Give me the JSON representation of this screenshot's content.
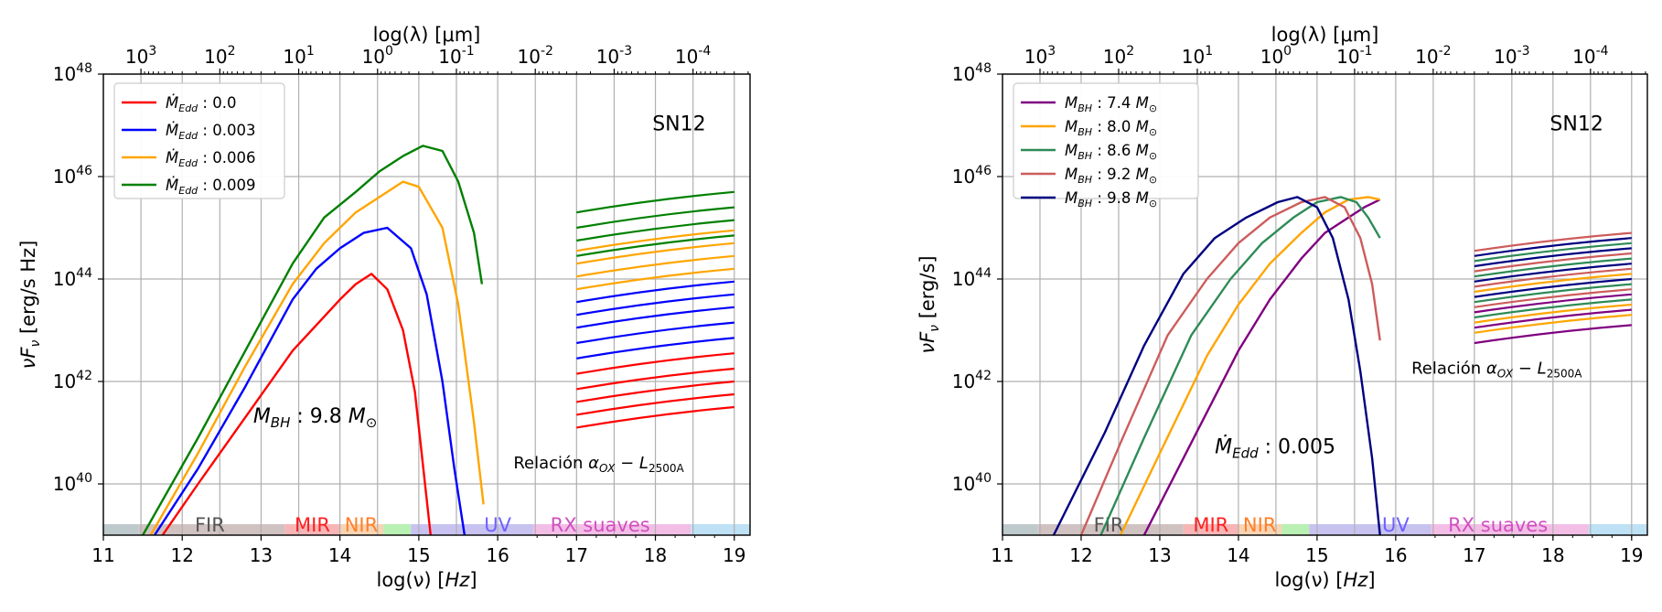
{
  "chart_data": [
    {
      "type": "line",
      "panel": "left",
      "annotation_id": "SN12",
      "xlabel": "log(ν) [Hz]",
      "ylabel": "νFν [erg/s Hz]",
      "top_xlabel": "log(λ) [μm]",
      "xlim": [
        11,
        19.2
      ],
      "ylim_log10": [
        39,
        48
      ],
      "x_ticks": [
        11,
        12,
        13,
        14,
        15,
        16,
        17,
        18,
        19
      ],
      "y_ticks_log10": [
        40,
        42,
        44,
        46,
        48
      ],
      "top_ticks_exp": [
        3,
        2,
        1,
        0,
        -1,
        -2,
        -3,
        -4
      ],
      "legend_title": "",
      "legend_prefix": "Ṁ_Edd",
      "series": [
        {
          "name": "Ṁ_Edd : 0.0",
          "label_value": "0.0",
          "color": "#ff0000",
          "x": [
            11.75,
            12.2,
            12.8,
            13.4,
            13.7,
            14.0,
            14.2,
            14.4,
            14.6,
            14.8,
            14.95,
            15.05,
            15.15
          ],
          "y": [
            39.0,
            40.0,
            41.3,
            42.6,
            43.1,
            43.6,
            43.9,
            44.1,
            43.8,
            43.0,
            41.8,
            40.4,
            39.0
          ]
        },
        {
          "name": "Ṁ_Edd : 0.003",
          "label_value": "0.003",
          "color": "#0000ff",
          "x": [
            11.65,
            12.2,
            12.8,
            13.4,
            13.7,
            14.0,
            14.3,
            14.6,
            14.9,
            15.1,
            15.3,
            15.45,
            15.58
          ],
          "y": [
            39.0,
            40.3,
            41.9,
            43.6,
            44.2,
            44.6,
            44.9,
            45.0,
            44.6,
            43.7,
            42.0,
            40.3,
            39.0
          ]
        },
        {
          "name": "Ṁ_Edd : 0.006",
          "label_value": "0.006",
          "color": "#ffa500",
          "x": [
            11.6,
            12.2,
            12.8,
            13.4,
            13.8,
            14.2,
            14.5,
            14.8,
            15.0,
            15.3,
            15.5,
            15.7,
            15.82
          ],
          "y": [
            39.0,
            40.6,
            42.3,
            43.9,
            44.7,
            45.3,
            45.6,
            45.9,
            45.8,
            45.0,
            43.5,
            41.2,
            39.6
          ]
        },
        {
          "name": "Ṁ_Edd : 0.009",
          "label_value": "0.009",
          "color": "#008000",
          "x": [
            11.5,
            12.2,
            12.8,
            13.4,
            13.8,
            14.2,
            14.5,
            14.8,
            15.05,
            15.3,
            15.5,
            15.7,
            15.8
          ],
          "y": [
            39.0,
            40.9,
            42.6,
            44.3,
            45.2,
            45.7,
            46.1,
            46.4,
            46.6,
            46.5,
            45.9,
            44.9,
            43.9
          ]
        }
      ],
      "xray_lines": [
        {
          "color": "#008000",
          "y_start": 45.3,
          "y_end": 45.7
        },
        {
          "color": "#008000",
          "y_start": 45.0,
          "y_end": 45.4
        },
        {
          "color": "#008000",
          "y_start": 44.75,
          "y_end": 45.15
        },
        {
          "color": "#ffa500",
          "y_start": 44.55,
          "y_end": 44.95
        },
        {
          "color": "#008000",
          "y_start": 44.45,
          "y_end": 44.85
        },
        {
          "color": "#ffa500",
          "y_start": 44.3,
          "y_end": 44.7
        },
        {
          "color": "#ffa500",
          "y_start": 44.05,
          "y_end": 44.45
        },
        {
          "color": "#ffa500",
          "y_start": 43.8,
          "y_end": 44.2
        },
        {
          "color": "#0000ff",
          "y_start": 43.55,
          "y_end": 43.95
        },
        {
          "color": "#0000ff",
          "y_start": 43.3,
          "y_end": 43.7
        },
        {
          "color": "#0000ff",
          "y_start": 43.05,
          "y_end": 43.45
        },
        {
          "color": "#0000ff",
          "y_start": 42.75,
          "y_end": 43.15
        },
        {
          "color": "#0000ff",
          "y_start": 42.45,
          "y_end": 42.85
        },
        {
          "color": "#ff0000",
          "y_start": 42.15,
          "y_end": 42.55
        },
        {
          "color": "#ff0000",
          "y_start": 41.85,
          "y_end": 42.25
        },
        {
          "color": "#ff0000",
          "y_start": 41.6,
          "y_end": 42.0
        },
        {
          "color": "#ff0000",
          "y_start": 41.35,
          "y_end": 41.75
        },
        {
          "color": "#ff0000",
          "y_start": 41.1,
          "y_end": 41.5
        }
      ],
      "xray_x": [
        17.0,
        19.0
      ],
      "annotations": {
        "sample": "SN12",
        "fixed_param": "M_BH : 9.8 M⊙",
        "relation": "Relación α_OX − L_2500A"
      }
    },
    {
      "type": "line",
      "panel": "right",
      "xlabel": "log(ν) [Hz]",
      "ylabel": "νFν [erg/s]",
      "top_xlabel": "log(λ) [μm]",
      "xlim": [
        11,
        19.2
      ],
      "ylim_log10": [
        39,
        48
      ],
      "x_ticks": [
        11,
        12,
        13,
        14,
        15,
        16,
        17,
        18,
        19
      ],
      "y_ticks_log10": [
        40,
        42,
        44,
        46,
        48
      ],
      "top_ticks_exp": [
        3,
        2,
        1,
        0,
        -1,
        -2,
        -3,
        -4
      ],
      "legend_prefix": "M_BH",
      "series": [
        {
          "name": "M_BH : 7.4 M⊙",
          "label_value": "7.4",
          "color": "#800080",
          "x": [
            12.8,
            13.4,
            14.0,
            14.4,
            14.8,
            15.1,
            15.4,
            15.6,
            15.8
          ],
          "y": [
            39.0,
            40.8,
            42.6,
            43.6,
            44.4,
            44.9,
            45.2,
            45.4,
            45.55
          ]
        },
        {
          "name": "M_BH : 8.0 M⊙",
          "label_value": "8.0",
          "color": "#ffa500",
          "x": [
            12.5,
            13.0,
            13.6,
            14.0,
            14.4,
            14.8,
            15.1,
            15.4,
            15.65,
            15.8
          ],
          "y": [
            39.0,
            40.6,
            42.5,
            43.5,
            44.3,
            44.9,
            45.3,
            45.55,
            45.6,
            45.55
          ]
        },
        {
          "name": "M_BH : 8.6 M⊙",
          "label_value": "8.6",
          "color": "#2e8b57",
          "x": [
            12.25,
            12.8,
            13.4,
            13.9,
            14.3,
            14.7,
            15.0,
            15.3,
            15.5,
            15.65,
            15.8
          ],
          "y": [
            39.0,
            40.9,
            42.9,
            44.0,
            44.7,
            45.2,
            45.5,
            45.6,
            45.5,
            45.2,
            44.8
          ]
        },
        {
          "name": "M_BH : 9.2 M⊙",
          "label_value": "9.2",
          "color": "#cd5c5c",
          "x": [
            12.0,
            12.5,
            13.1,
            13.6,
            14.0,
            14.4,
            14.8,
            15.1,
            15.35,
            15.55,
            15.7,
            15.8
          ],
          "y": [
            39.0,
            40.8,
            42.9,
            44.0,
            44.7,
            45.2,
            45.5,
            45.6,
            45.4,
            44.8,
            43.9,
            42.8
          ]
        },
        {
          "name": "M_BH : 9.8 M⊙",
          "label_value": "9.8",
          "color": "#000080",
          "x": [
            11.65,
            12.3,
            12.8,
            13.3,
            13.7,
            14.1,
            14.5,
            14.75,
            15.0,
            15.2,
            15.4,
            15.55,
            15.7,
            15.8
          ],
          "y": [
            39.0,
            41.0,
            42.7,
            44.1,
            44.8,
            45.2,
            45.5,
            45.6,
            45.4,
            44.8,
            43.6,
            42.2,
            40.5,
            39.0
          ]
        }
      ],
      "xray_lines": [
        {
          "color": "#cd5c5c",
          "y_start": 44.55,
          "y_end": 44.9
        },
        {
          "color": "#000080",
          "y_start": 44.45,
          "y_end": 44.8
        },
        {
          "color": "#2e8b57",
          "y_start": 44.35,
          "y_end": 44.7
        },
        {
          "color": "#000080",
          "y_start": 44.25,
          "y_end": 44.6
        },
        {
          "color": "#cd5c5c",
          "y_start": 44.15,
          "y_end": 44.5
        },
        {
          "color": "#2e8b57",
          "y_start": 44.05,
          "y_end": 44.4
        },
        {
          "color": "#000080",
          "y_start": 43.95,
          "y_end": 44.3
        },
        {
          "color": "#cd5c5c",
          "y_start": 43.85,
          "y_end": 44.2
        },
        {
          "color": "#ffa500",
          "y_start": 43.75,
          "y_end": 44.1
        },
        {
          "color": "#000080",
          "y_start": 43.65,
          "y_end": 44.0
        },
        {
          "color": "#2e8b57",
          "y_start": 43.55,
          "y_end": 43.9
        },
        {
          "color": "#cd5c5c",
          "y_start": 43.45,
          "y_end": 43.8
        },
        {
          "color": "#800080",
          "y_start": 43.35,
          "y_end": 43.7
        },
        {
          "color": "#2e8b57",
          "y_start": 43.25,
          "y_end": 43.6
        },
        {
          "color": "#ffa500",
          "y_start": 43.15,
          "y_end": 43.5
        },
        {
          "color": "#800080",
          "y_start": 43.05,
          "y_end": 43.4
        },
        {
          "color": "#ffa500",
          "y_start": 42.95,
          "y_end": 43.3
        },
        {
          "color": "#800080",
          "y_start": 42.75,
          "y_end": 43.1
        }
      ],
      "xray_x": [
        17.0,
        19.0
      ],
      "annotations": {
        "sample": "SN12",
        "fixed_param": "Ṁ_Edd : 0.005",
        "relation": "Relación α_OX − L_2500A"
      }
    }
  ],
  "bands": [
    {
      "label": "",
      "x0": 11.0,
      "x1": 11.45,
      "color": "#bec9cc"
    },
    {
      "label": "FIR",
      "x0": 11.45,
      "x1": 13.3,
      "color": "#d1c2c2",
      "text_color": "#555555",
      "text_at": 12.35
    },
    {
      "label": "MIR",
      "x0": 13.3,
      "x1": 14.0,
      "color": "#f7b5b5",
      "text_color": "#ff2020",
      "text_at": 13.65
    },
    {
      "label": "NIR",
      "x0": 14.0,
      "x1": 14.55,
      "color": "#f9d4b4",
      "text_color": "#ff7f27",
      "text_at": 14.27
    },
    {
      "label": "",
      "x0": 14.55,
      "x1": 14.9,
      "color": "#b9f0b4"
    },
    {
      "label": "UV",
      "x0": 14.9,
      "x1": 16.45,
      "color": "#c7c2f0",
      "text_color": "#7060ff",
      "text_at": 16.0
    },
    {
      "label": "RX suaves",
      "x0": 16.45,
      "x1": 18.45,
      "color": "#f2bee6",
      "text_color": "#d050c0",
      "text_at": 17.3
    },
    {
      "label": "",
      "x0": 18.45,
      "x1": 19.2,
      "color": "#bfe1f5"
    }
  ],
  "labels": {
    "x_axis": "log(ν) [",
    "x_axis_unit": "Hz",
    "top_axis": "log(λ) [μm]",
    "left_y_axis": "[erg/s Hz]",
    "right_y_axis": "[erg/s]",
    "sample": "SN12",
    "relation_prefix": "Relación",
    "ten": "10"
  }
}
